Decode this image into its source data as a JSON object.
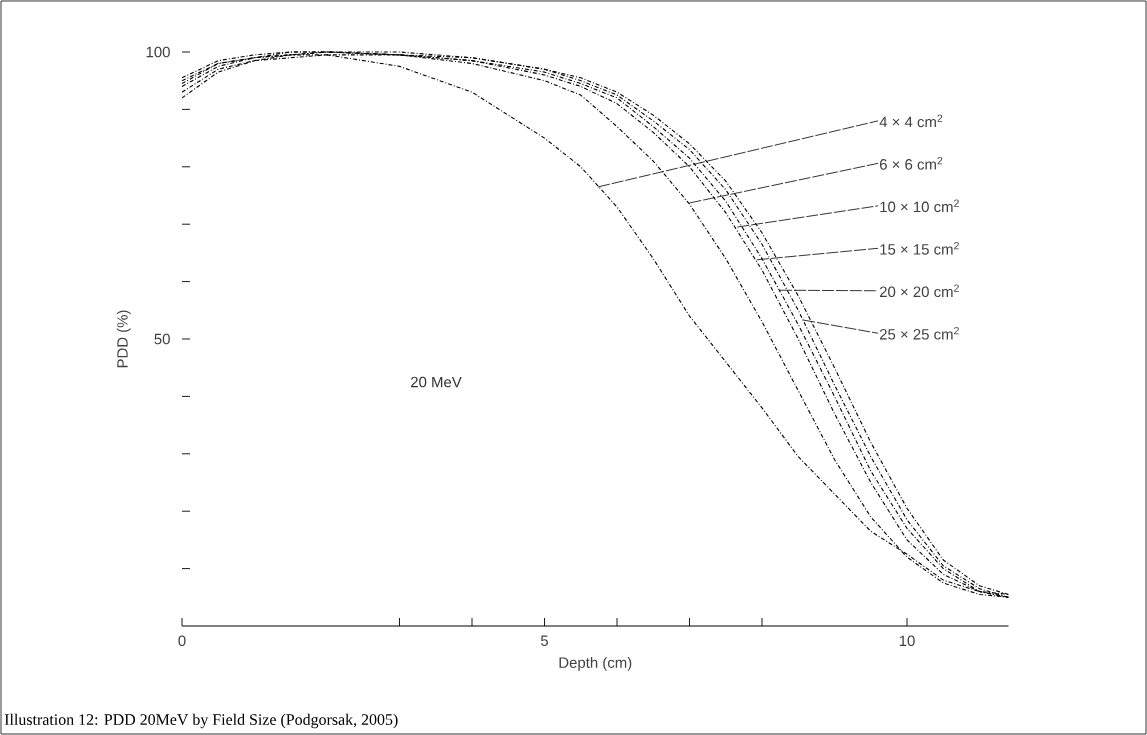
{
  "chart_data": {
    "type": "line",
    "xlabel": "Depth (cm)",
    "ylabel": "PDD (%)",
    "x": [
      0,
      0.5,
      1,
      1.5,
      2,
      3,
      4,
      5,
      5.5,
      6,
      6.5,
      7,
      7.5,
      8,
      8.5,
      9,
      9.5,
      10,
      10.5,
      11,
      11.4
    ],
    "series": [
      {
        "color": "#000000",
        "values": [
          93,
          97,
          98.5,
          99,
          99.5,
          97.5,
          93,
          85,
          80,
          73,
          64,
          54,
          46,
          38,
          29.5,
          23,
          16.5,
          12.5,
          8,
          6,
          5.5
        ]
      },
      {
        "color": "#000000",
        "values": [
          92,
          96.5,
          98.5,
          99.5,
          99.5,
          99.5,
          98,
          95,
          92.5,
          87,
          81,
          73.5,
          64,
          53,
          41,
          29,
          19,
          12,
          7.5,
          5.5,
          5
        ]
      },
      {
        "color": "#000000",
        "values": [
          94,
          97.5,
          99,
          99.5,
          100,
          99.5,
          98.5,
          96,
          94,
          91,
          86,
          80,
          72,
          62,
          50,
          37,
          25,
          15,
          9,
          6,
          5
        ]
      },
      {
        "color": "#000000",
        "values": [
          94.5,
          98,
          99,
          99.5,
          100,
          99.5,
          98.5,
          96.5,
          94.5,
          92,
          87,
          81.5,
          74,
          64,
          52.5,
          40,
          27,
          17,
          10,
          6,
          5
        ]
      },
      {
        "color": "#000000",
        "values": [
          95,
          98,
          99,
          100,
          100,
          99.5,
          99,
          97,
          95,
          92.5,
          88,
          83,
          76,
          66.5,
          55,
          42,
          29.5,
          18.5,
          10.5,
          6.5,
          5
        ]
      },
      {
        "color": "#000000",
        "values": [
          95.5,
          98.5,
          99.5,
          100,
          100,
          100,
          99,
          97,
          95.5,
          93,
          89,
          84,
          77.5,
          68.5,
          57.5,
          45,
          32,
          20.5,
          11.5,
          7,
          5.5
        ]
      }
    ],
    "xlim": [
      0,
      11.4
    ],
    "ylim": [
      0,
      100
    ],
    "xticks": [
      0,
      {
        "value": 3,
        "label": null
      },
      {
        "value": 4,
        "label": null
      },
      5,
      {
        "value": 6,
        "label": null
      },
      {
        "value": 7,
        "label": null
      },
      {
        "value": 8,
        "label": null
      },
      10
    ],
    "yticks": [
      {
        "value": 10,
        "label": null
      },
      {
        "value": 20,
        "label": null
      },
      {
        "value": 30,
        "label": null
      },
      {
        "value": 40,
        "label": null
      },
      50,
      {
        "value": 60,
        "label": null
      },
      {
        "value": 70,
        "label": null
      },
      {
        "value": 80,
        "label": null
      },
      {
        "value": 90,
        "label": null
      },
      100
    ],
    "line_style": "dashed",
    "annotations": [
      {
        "text": "4 × 4 cm$^{2}$",
        "x": 5.74,
        "y": 76.5
      },
      {
        "text": "6 × 6 cm$^{2}$",
        "x": 7.0,
        "y": 73.7
      },
      {
        "text": "10 × 10 cm$^{2}$",
        "x": 7.66,
        "y": 69.5
      },
      {
        "text": "15 × 15 cm$^{2}$",
        "x": 7.93,
        "y": 63.8
      },
      {
        "text": "20 × 20 cm$^{2}$",
        "x": 8.25,
        "y": 58.5
      },
      {
        "text": "25 × 25 cm$^{2}$",
        "x": 8.57,
        "y": 53.3
      },
      "20 MeV",
      "Illustration 12: PDD 20MeV by Field Size (Podgorsak, 2005)"
    ]
  }
}
